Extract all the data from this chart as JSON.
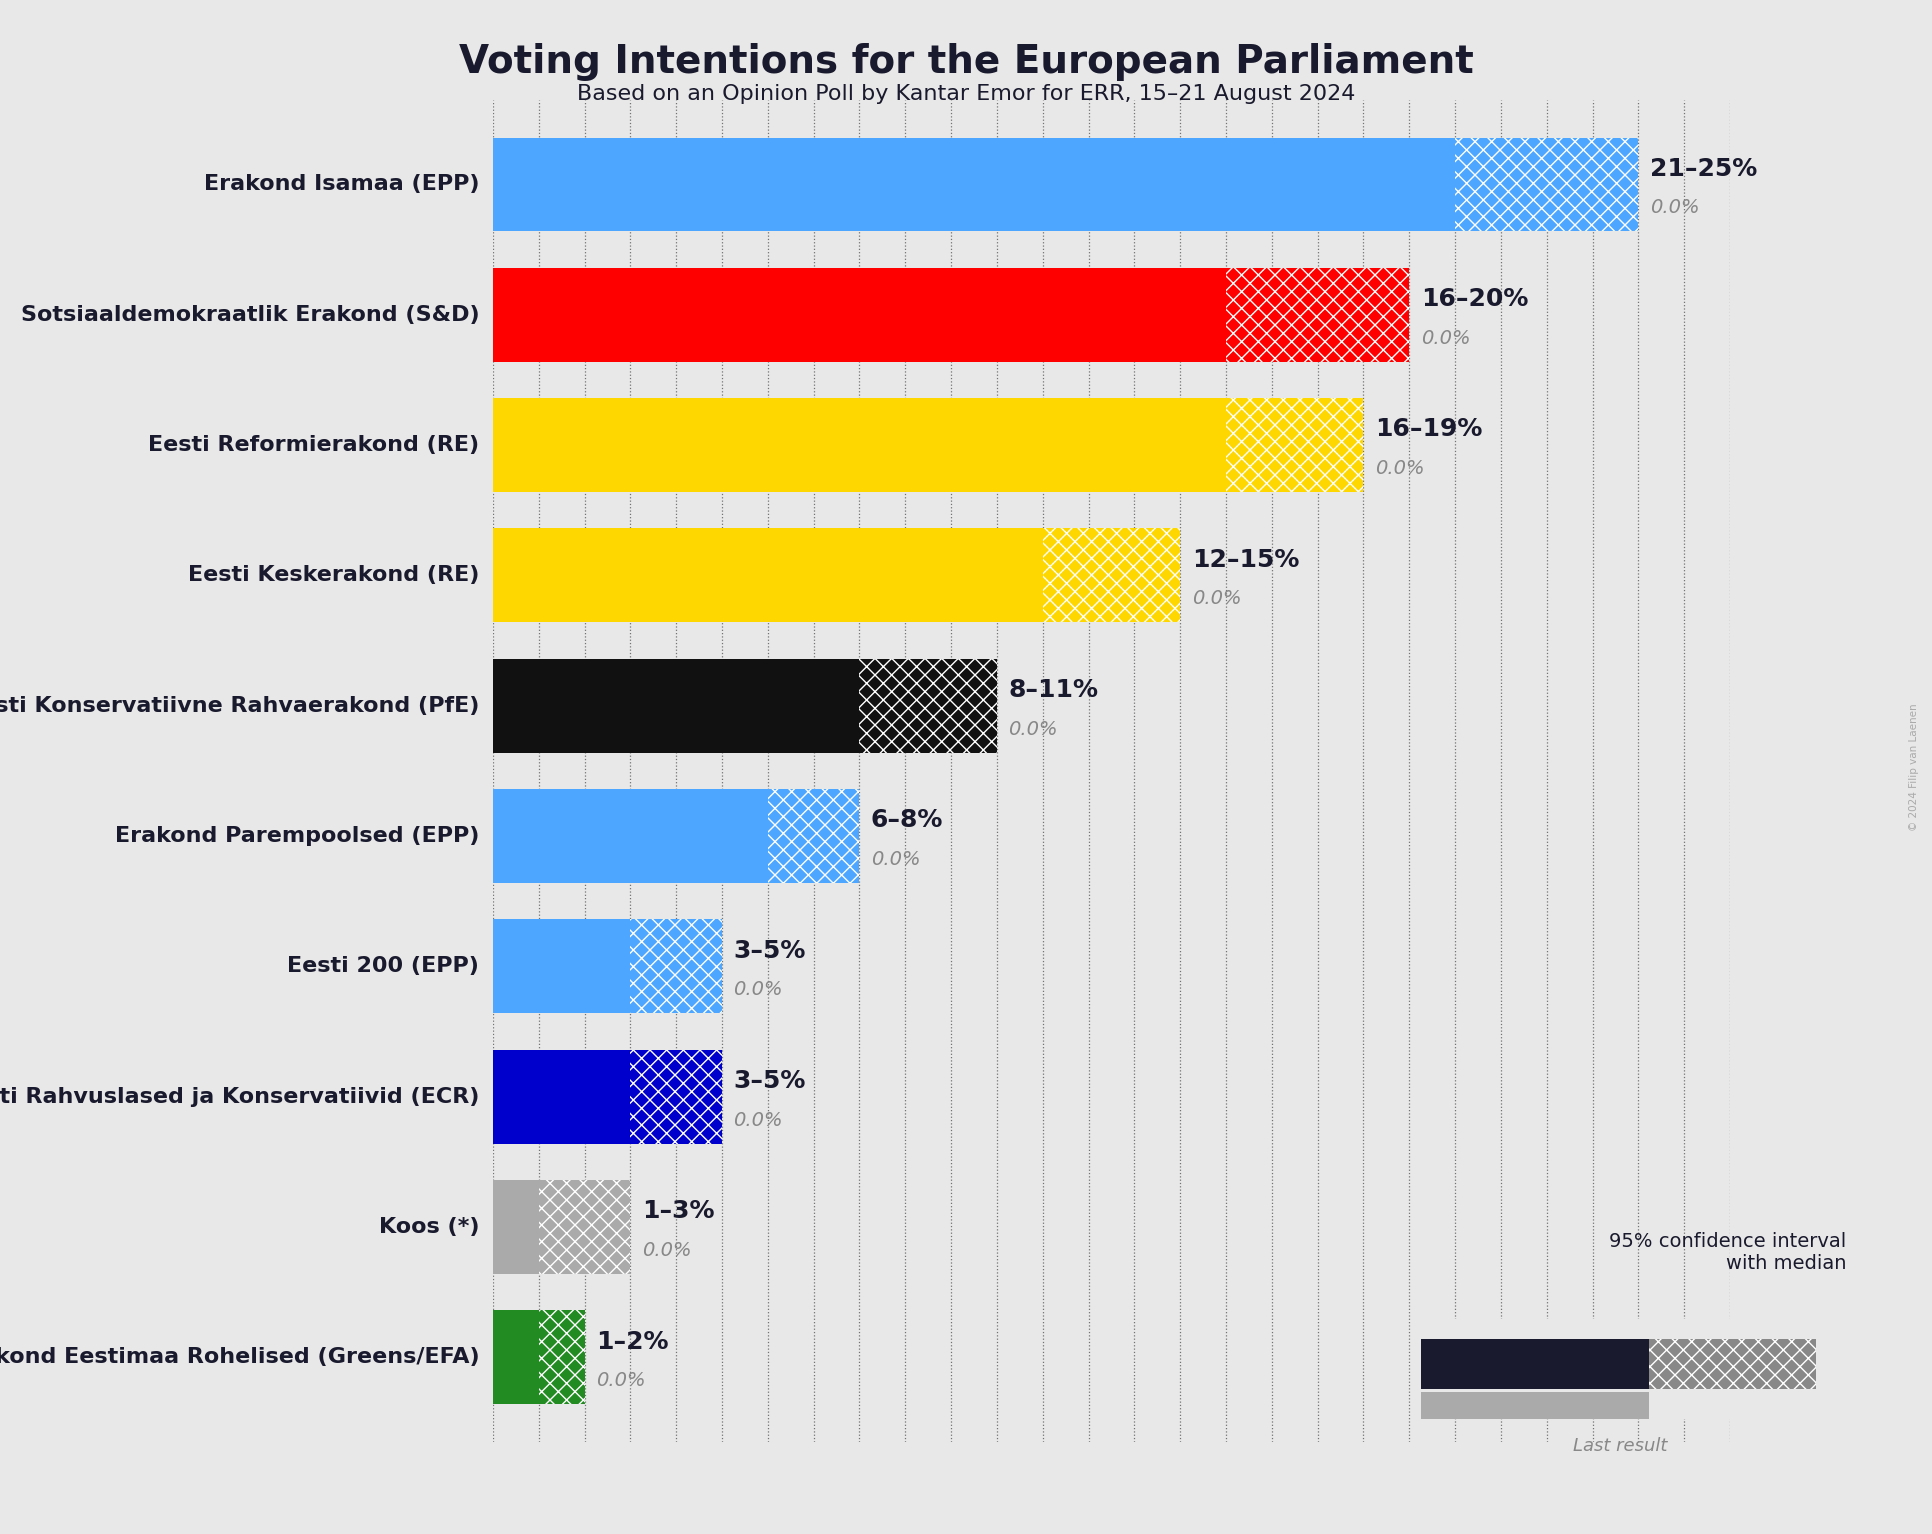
{
  "title": "Voting Intentions for the European Parliament",
  "subtitle": "Based on an Opinion Poll by Kantar Emor for ERR, 15–21 August 2024",
  "copyright": "© 2024 Filip van Laenen",
  "background_color": "#e8e8e8",
  "parties": [
    {
      "name": "Erakond Isamaa (EPP)",
      "low": 21,
      "high": 25,
      "median": 21,
      "last": 0.0,
      "color": "#4da6ff",
      "label": "21–25%"
    },
    {
      "name": "Sotsiaaldemokraatlik Erakond (S&D)",
      "low": 16,
      "high": 20,
      "median": 16,
      "last": 0.0,
      "color": "#ff0000",
      "label": "16–20%"
    },
    {
      "name": "Eesti Reformierakond (RE)",
      "low": 16,
      "high": 19,
      "median": 16,
      "last": 0.0,
      "color": "#FFD700",
      "label": "16–19%"
    },
    {
      "name": "Eesti Keskerakond (RE)",
      "low": 12,
      "high": 15,
      "median": 12,
      "last": 0.0,
      "color": "#FFD700",
      "label": "12–15%"
    },
    {
      "name": "Eesti Konservatiivne Rahvaerakond (PfE)",
      "low": 8,
      "high": 11,
      "median": 8,
      "last": 0.0,
      "color": "#111111",
      "label": "8–11%"
    },
    {
      "name": "Erakond Parempoolsed (EPP)",
      "low": 6,
      "high": 8,
      "median": 6,
      "last": 0.0,
      "color": "#4da6ff",
      "label": "6–8%"
    },
    {
      "name": "Eesti 200 (EPP)",
      "low": 3,
      "high": 5,
      "median": 3,
      "last": 0.0,
      "color": "#4da6ff",
      "label": "3–5%"
    },
    {
      "name": "Eesti Rahvuslased ja Konservatiivid (ECR)",
      "low": 3,
      "high": 5,
      "median": 3,
      "last": 0.0,
      "color": "#0000cc",
      "label": "3–5%"
    },
    {
      "name": "Koos (*)",
      "low": 1,
      "high": 3,
      "median": 1,
      "last": 0.0,
      "color": "#aaaaaa",
      "label": "1–3%"
    },
    {
      "name": "Erakond Eestimaa Rohelised (Greens/EFA)",
      "low": 1,
      "high": 2,
      "median": 1,
      "last": 0.0,
      "color": "#228B22",
      "label": "1–2%"
    }
  ],
  "xlim": [
    0,
    27
  ],
  "title_fontsize": 28,
  "subtitle_fontsize": 16,
  "party_fontsize": 16,
  "range_fontsize": 18,
  "last_fontsize": 14,
  "legend_title_fontsize": 14,
  "legend_last_fontsize": 13
}
